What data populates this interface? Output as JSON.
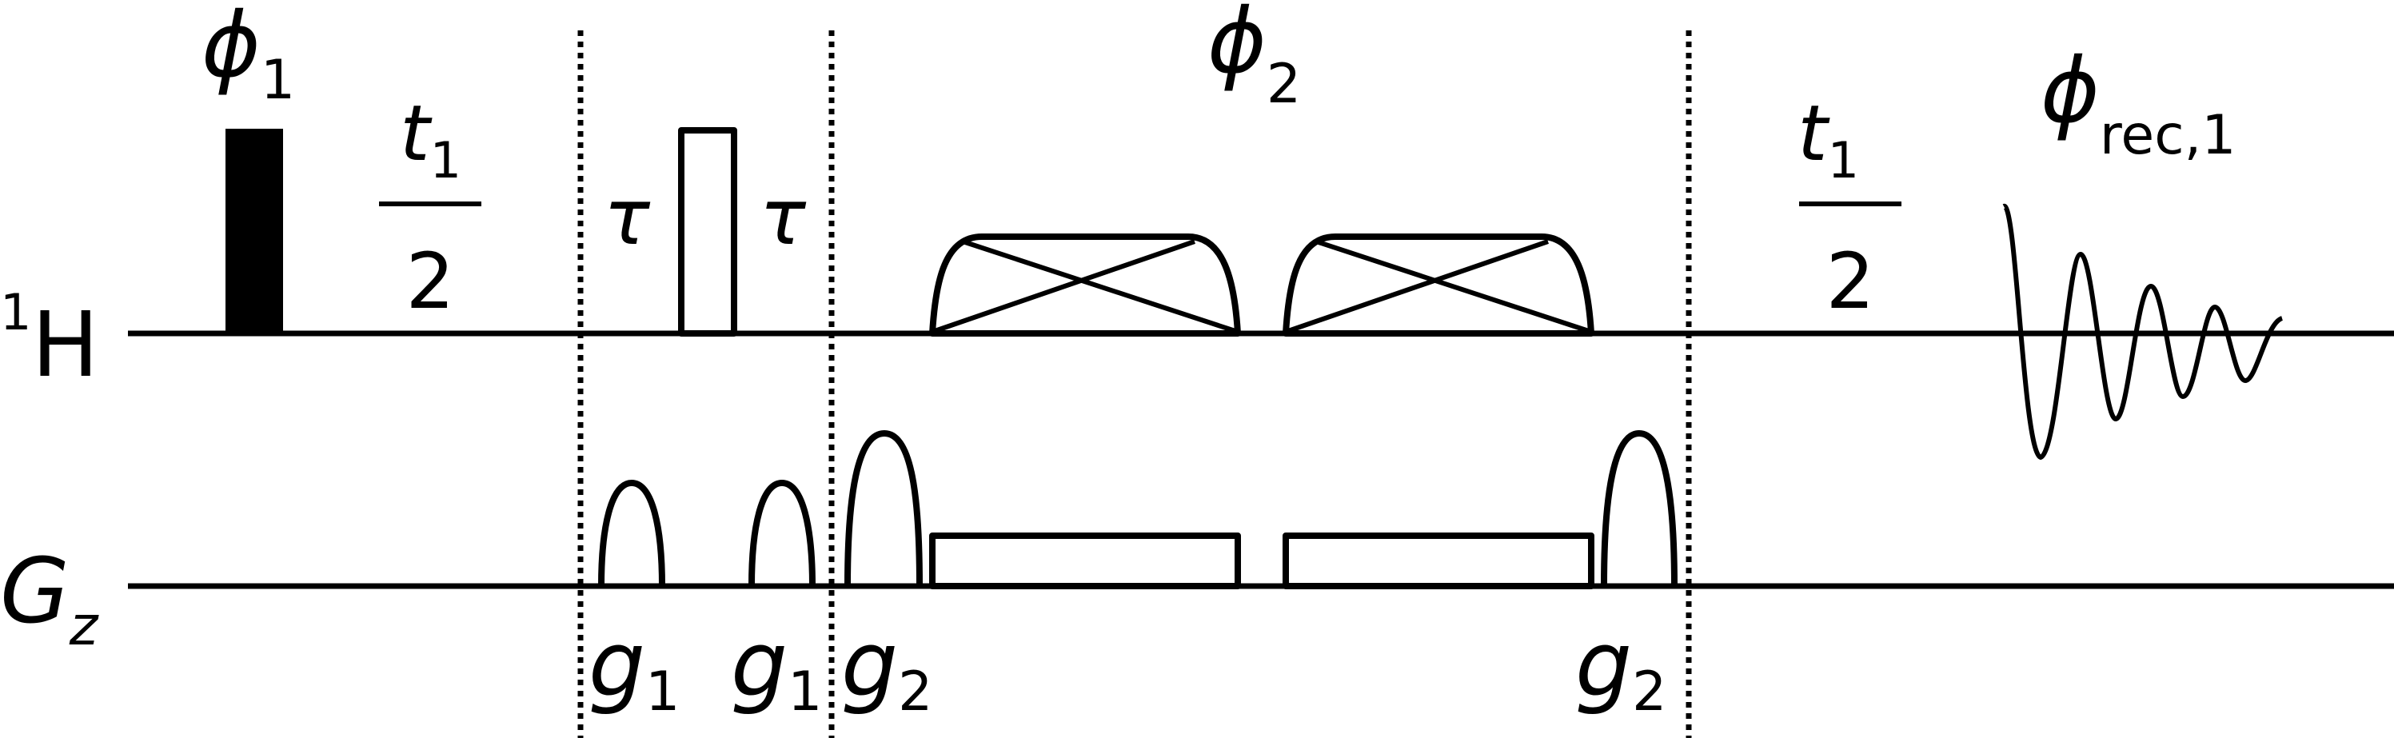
{
  "channels": {
    "proton": {
      "prefix": "1",
      "label": "H"
    },
    "gradient": {
      "label": "G",
      "subscript": "z"
    }
  },
  "phases": {
    "phi1": {
      "symbol": "ϕ",
      "sub": "1"
    },
    "phi2": {
      "symbol": "ϕ",
      "sub": "2"
    },
    "phi_rec": {
      "symbol": "ϕ",
      "sub": "rec,1"
    }
  },
  "delays": {
    "t1_half_left": {
      "numerator": "t",
      "numerator_sub": "1",
      "denominator": "2"
    },
    "t1_half_right": {
      "numerator": "t",
      "numerator_sub": "1",
      "denominator": "2"
    },
    "tau_left": "τ",
    "tau_right": "τ"
  },
  "gradients": {
    "g1_a": {
      "symbol": "g",
      "sub": "1"
    },
    "g1_b": {
      "symbol": "g",
      "sub": "1"
    },
    "g2_a": {
      "symbol": "g",
      "sub": "2"
    },
    "g2_b": {
      "symbol": "g",
      "sub": "2"
    }
  },
  "colors": {
    "ink": "#000000",
    "background": "#ffffff"
  }
}
